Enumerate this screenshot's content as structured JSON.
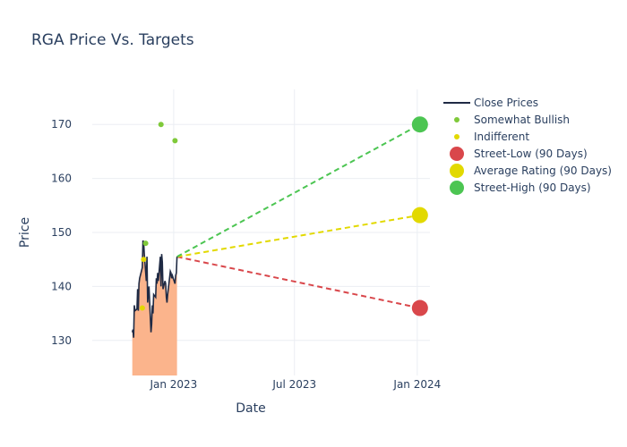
{
  "chart_data": {
    "type": "line",
    "title": "RGA Price Vs. Targets",
    "xlabel": "Date",
    "ylabel": "Price",
    "ylim": [
      123.5,
      176.5
    ],
    "yticks": [
      130,
      140,
      150,
      160,
      170
    ],
    "xticks": [
      {
        "date": "2023-01-01",
        "label": "Jan 2023"
      },
      {
        "date": "2023-07-01",
        "label": "Jul 2023"
      },
      {
        "date": "2024-01-01",
        "label": "Jan 2024"
      }
    ],
    "xlim": [
      "2022-09-01",
      "2024-01-20"
    ],
    "grid": true,
    "legend_position": "top-right",
    "colors": {
      "close": "#1f2a44",
      "fill": "#fbb48c",
      "somewhat_bullish": "#7fc93a",
      "indifferent": "#e2d900",
      "street_low": "#d9474b",
      "average": "#e2d900",
      "street_high": "#4cc552"
    },
    "legend": [
      {
        "key": "close",
        "label": "Close Prices"
      },
      {
        "key": "somewhat_bullish",
        "label": "Somewhat Bullish"
      },
      {
        "key": "indifferent",
        "label": "Indifferent"
      },
      {
        "key": "street_low",
        "label": "Street-Low (90 Days)"
      },
      {
        "key": "average",
        "label": "Average Rating (90 Days)"
      },
      {
        "key": "street_high",
        "label": "Street-High (90 Days)"
      }
    ],
    "close_prices": [
      [
        "2022-10-31",
        131.5
      ],
      [
        "2022-11-01",
        132.0
      ],
      [
        "2022-11-02",
        130.5
      ],
      [
        "2022-11-03",
        136.5
      ],
      [
        "2022-11-04",
        135.5
      ],
      [
        "2022-11-07",
        135.8
      ],
      [
        "2022-11-08",
        139.5
      ],
      [
        "2022-11-09",
        135.5
      ],
      [
        "2022-11-10",
        140.5
      ],
      [
        "2022-11-11",
        141.5
      ],
      [
        "2022-11-14",
        143.0
      ],
      [
        "2022-11-15",
        143.5
      ],
      [
        "2022-11-16",
        148.5
      ],
      [
        "2022-11-17",
        148.2
      ],
      [
        "2022-11-18",
        146.0
      ],
      [
        "2022-11-21",
        141.0
      ],
      [
        "2022-11-22",
        145.5
      ],
      [
        "2022-11-23",
        137.0
      ],
      [
        "2022-11-25",
        140.0
      ],
      [
        "2022-11-28",
        131.5
      ],
      [
        "2022-11-29",
        133.0
      ],
      [
        "2022-11-30",
        136.5
      ],
      [
        "2022-12-01",
        135.0
      ],
      [
        "2022-12-02",
        138.5
      ],
      [
        "2022-12-05",
        138.0
      ],
      [
        "2022-12-06",
        141.5
      ],
      [
        "2022-12-07",
        140.5
      ],
      [
        "2022-12-08",
        142.5
      ],
      [
        "2022-12-09",
        141.0
      ],
      [
        "2022-12-12",
        145.5
      ],
      [
        "2022-12-13",
        140.0
      ],
      [
        "2022-12-14",
        146.0
      ],
      [
        "2022-12-15",
        144.5
      ],
      [
        "2022-12-16",
        139.5
      ],
      [
        "2022-12-19",
        141.0
      ],
      [
        "2022-12-20",
        140.5
      ],
      [
        "2022-12-21",
        138.0
      ],
      [
        "2022-12-22",
        137.0
      ],
      [
        "2022-12-23",
        138.5
      ],
      [
        "2022-12-27",
        142.8
      ],
      [
        "2022-12-28",
        142.5
      ],
      [
        "2022-12-29",
        141.5
      ],
      [
        "2022-12-30",
        142.0
      ],
      [
        "2023-01-03",
        140.5
      ],
      [
        "2023-01-04",
        142.0
      ],
      [
        "2023-01-05",
        142.5
      ],
      [
        "2023-01-06",
        145.5
      ]
    ],
    "somewhat_bullish": [
      [
        "2022-12-13",
        170
      ],
      [
        "2023-01-03",
        167
      ],
      [
        "2022-11-20",
        148
      ]
    ],
    "indifferent": [
      [
        "2022-11-15",
        136
      ],
      [
        "2022-11-17",
        145
      ]
    ],
    "targets": {
      "start": [
        "2023-01-06",
        145.5
      ],
      "end_date": "2024-01-05",
      "street_low": 136,
      "average": 153.2,
      "street_high": 170
    }
  }
}
